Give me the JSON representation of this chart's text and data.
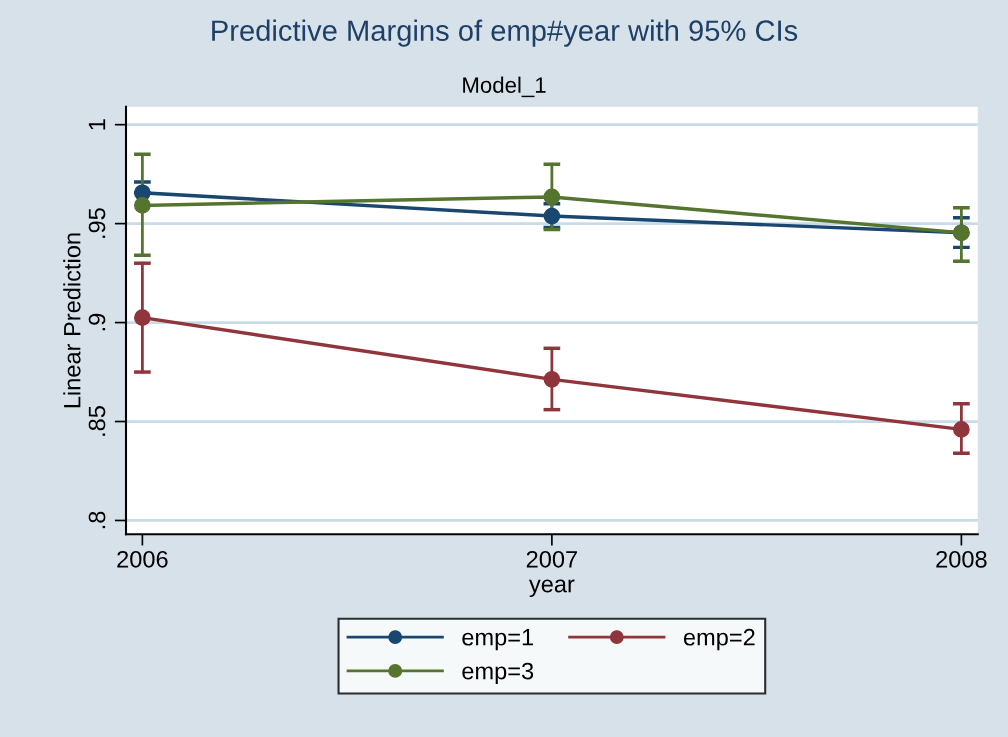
{
  "chart_data": {
    "type": "line",
    "title": "Predictive Margins of emp#year with 95% CIs",
    "subtitle": "Model_1",
    "xlabel": "year",
    "ylabel": "Linear Prediction",
    "x": [
      2006,
      2007,
      2008
    ],
    "xlim": [
      2005.96,
      2008.04
    ],
    "xticks": [
      2006,
      2007,
      2008
    ],
    "ylim": [
      0.793,
      1.009
    ],
    "yticks": [
      {
        "value": 0.8,
        "label": ".8"
      },
      {
        "value": 0.85,
        "label": ".85"
      },
      {
        "value": 0.9,
        "label": ".9"
      },
      {
        "value": 0.95,
        "label": ".95"
      },
      {
        "value": 1,
        "label": "1"
      }
    ],
    "grid": "y",
    "legend": "bottom",
    "marker": "circle",
    "line_style": "solid",
    "series": [
      {
        "name": "emp=1",
        "color": "#1a476f",
        "values": [
          0.9656,
          0.9538,
          0.9454
        ],
        "errors": [
          [
            0.9656,
            0.971
          ],
          [
            0.948,
            0.96
          ],
          [
            0.938,
            0.953
          ]
        ]
      },
      {
        "name": "emp=2",
        "color": "#90353b",
        "values": [
          0.9025,
          0.8713,
          0.846
        ],
        "errors": [
          [
            0.875,
            0.93
          ],
          [
            0.856,
            0.887
          ],
          [
            0.834,
            0.859
          ]
        ]
      },
      {
        "name": "emp=3",
        "color": "#55752f",
        "values": [
          0.9592,
          0.9635,
          0.9454
        ],
        "errors": [
          [
            0.934,
            0.985
          ],
          [
            0.947,
            0.98
          ],
          [
            0.931,
            0.958
          ]
        ]
      }
    ]
  }
}
